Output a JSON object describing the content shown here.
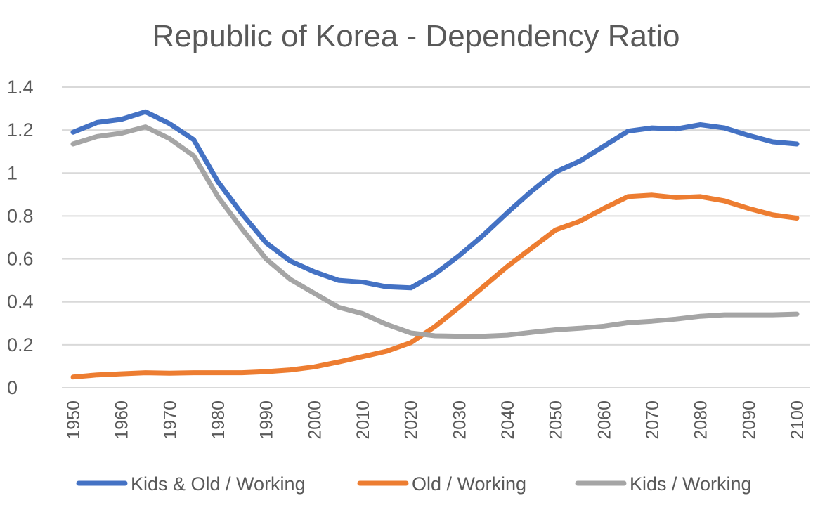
{
  "chart_data": {
    "type": "line",
    "title": "Republic of Korea - Dependency Ratio",
    "xlabel": "",
    "ylabel": "",
    "ylim": [
      0,
      1.4
    ],
    "yticks": [
      {
        "value": 0,
        "label": "0"
      },
      {
        "value": 0.2,
        "label": "0.2"
      },
      {
        "value": 0.4,
        "label": "0.4"
      },
      {
        "value": 0.6,
        "label": "0.6"
      },
      {
        "value": 0.8,
        "label": "0.8"
      },
      {
        "value": 1,
        "label": "1"
      },
      {
        "value": 1.2,
        "label": "1.2"
      },
      {
        "value": 1.4,
        "label": "1.4"
      }
    ],
    "xtick_labels": [
      "1950",
      "1960",
      "1970",
      "1980",
      "1990",
      "2000",
      "2010",
      "2020",
      "2030",
      "2040",
      "2050",
      "2060",
      "2070",
      "2080",
      "2090",
      "2100"
    ],
    "grid": true,
    "legend_position": "bottom",
    "x": [
      1950,
      1955,
      1960,
      1965,
      1970,
      1975,
      1980,
      1985,
      1990,
      1995,
      2000,
      2005,
      2010,
      2015,
      2020,
      2025,
      2030,
      2035,
      2040,
      2045,
      2050,
      2055,
      2060,
      2065,
      2070,
      2075,
      2080,
      2085,
      2090,
      2095,
      2100
    ],
    "series": [
      {
        "name": "Kids & Old / Working",
        "color": "#4472c4",
        "values": [
          1.19,
          1.235,
          1.25,
          1.285,
          1.23,
          1.155,
          0.96,
          0.81,
          0.675,
          0.59,
          0.54,
          0.5,
          0.492,
          0.47,
          0.465,
          0.53,
          0.615,
          0.71,
          0.815,
          0.915,
          1.005,
          1.055,
          1.125,
          1.195,
          1.21,
          1.205,
          1.225,
          1.21,
          1.175,
          1.145,
          1.135
        ]
      },
      {
        "name": "Old / Working",
        "color": "#ed7d31",
        "values": [
          0.05,
          0.06,
          0.065,
          0.07,
          0.068,
          0.07,
          0.07,
          0.07,
          0.075,
          0.083,
          0.097,
          0.12,
          0.145,
          0.17,
          0.21,
          0.285,
          0.375,
          0.47,
          0.565,
          0.65,
          0.735,
          0.775,
          0.835,
          0.89,
          0.897,
          0.885,
          0.89,
          0.87,
          0.835,
          0.805,
          0.79
        ]
      },
      {
        "name": "Kids / Working",
        "color": "#a5a5a5",
        "values": [
          1.135,
          1.17,
          1.185,
          1.215,
          1.16,
          1.08,
          0.89,
          0.74,
          0.6,
          0.505,
          0.44,
          0.375,
          0.345,
          0.295,
          0.255,
          0.242,
          0.24,
          0.24,
          0.245,
          0.258,
          0.27,
          0.277,
          0.287,
          0.303,
          0.31,
          0.32,
          0.333,
          0.34,
          0.34,
          0.34,
          0.343
        ]
      }
    ]
  }
}
